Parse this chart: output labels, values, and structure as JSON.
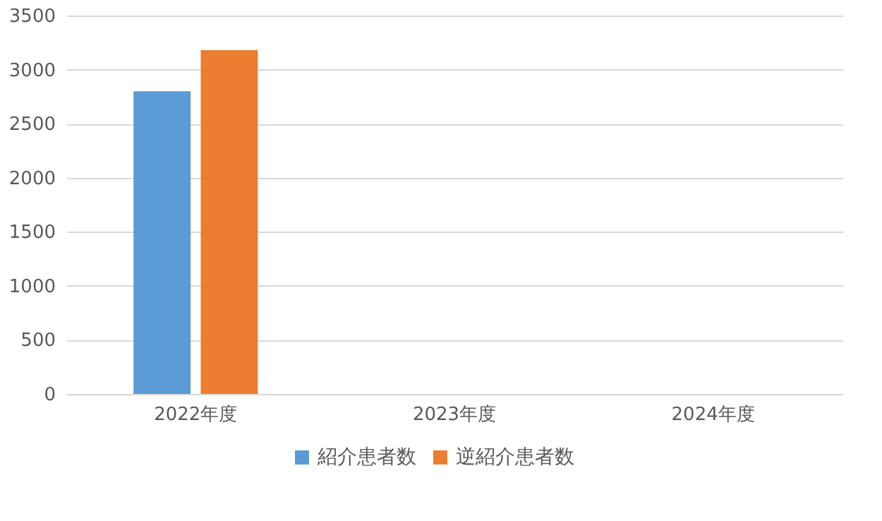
{
  "chart_data": {
    "type": "bar",
    "categories": [
      "2022年度",
      "2023年度",
      "2024年度"
    ],
    "series": [
      {
        "name": "紹介患者数",
        "color": "#5b9bd5",
        "values": [
          2800,
          null,
          null
        ]
      },
      {
        "name": "逆紹介患者数",
        "color": "#ed7d31",
        "values": [
          3180,
          null,
          null
        ]
      }
    ],
    "ylim": [
      0,
      3500
    ],
    "yticks": [
      0,
      500,
      1000,
      1500,
      2000,
      2500,
      3000,
      3500
    ],
    "grid": "y",
    "legend": "bottom"
  }
}
